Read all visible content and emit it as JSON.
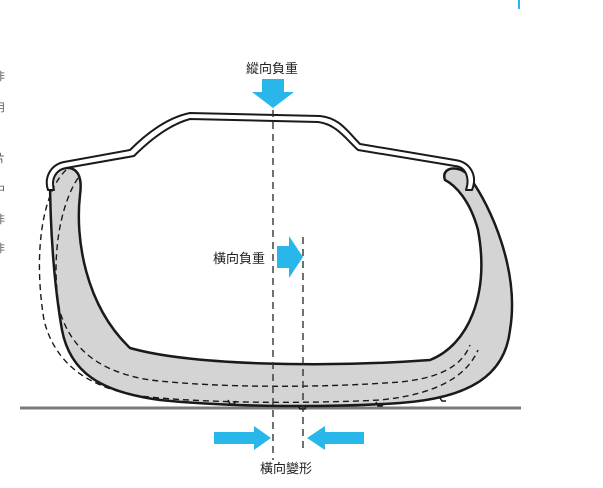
{
  "labels": {
    "vertical_load": "縱向負重",
    "lateral_load": "橫向負重",
    "lateral_deformation": "橫向變形"
  },
  "colors": {
    "arrow": "#29b6e9",
    "tire_fill": "#d4d4d4",
    "outline": "#1a1a1a",
    "ground": "#7a7a7a",
    "edge_accent": "#29b6e9"
  },
  "edge_glyphs": [
    "非",
    "用",
    "片",
    "中",
    "非",
    "非"
  ]
}
